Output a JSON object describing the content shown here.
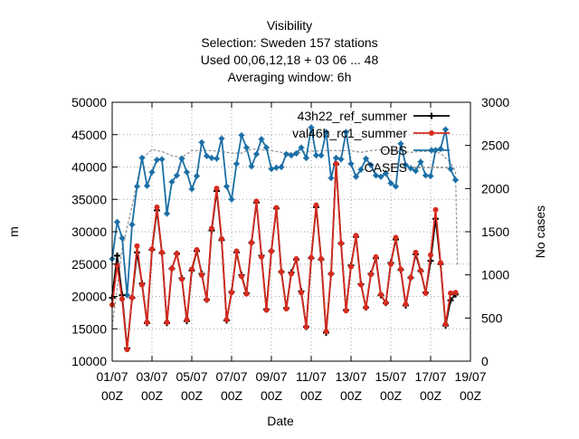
{
  "chart_data": {
    "type": "line",
    "title_lines": [
      "Visibility",
      "Selection: Sweden     157 stations",
      "Used  00,06,12,18  + 03 06 ... 48",
      "Averaging window:  6h"
    ],
    "xlabel": "Date",
    "ylabel": "m",
    "y2label": "No cases",
    "x_ticks": [
      {
        "day": 1,
        "label1": "01/07",
        "label2": "00Z"
      },
      {
        "day": 3,
        "label1": "03/07",
        "label2": "00Z"
      },
      {
        "day": 5,
        "label1": "05/07",
        "label2": "00Z"
      },
      {
        "day": 7,
        "label1": "07/07",
        "label2": "00Z"
      },
      {
        "day": 9,
        "label1": "09/07",
        "label2": "00Z"
      },
      {
        "day": 11,
        "label1": "11/07",
        "label2": "00Z"
      },
      {
        "day": 13,
        "label1": "13/07",
        "label2": "00Z"
      },
      {
        "day": 15,
        "label1": "15/07",
        "label2": "00Z"
      },
      {
        "day": 17,
        "label1": "17/07",
        "label2": "00Z"
      },
      {
        "day": 19,
        "label1": "19/07",
        "label2": "00Z"
      }
    ],
    "xlim": [
      1,
      19
    ],
    "ylim": [
      10000,
      50000
    ],
    "y_ticks": [
      10000,
      15000,
      20000,
      25000,
      30000,
      35000,
      40000,
      45000,
      50000
    ],
    "y2lim": [
      0,
      3000
    ],
    "y2_ticks": [
      0,
      500,
      1000,
      1500,
      2000,
      2500,
      3000
    ],
    "grid": true,
    "legend_position": "top-right",
    "series": [
      {
        "name": "43h22_ref_summer",
        "legend_label": "43h22_ref_summer",
        "color": "#000000",
        "marker": "plus",
        "axis": "y",
        "x": [
          1.0,
          1.25,
          1.5,
          1.75,
          2.0,
          2.25,
          2.5,
          2.75,
          3.0,
          3.25,
          3.5,
          3.75,
          4.0,
          4.25,
          4.5,
          4.75,
          5.0,
          5.25,
          5.5,
          5.75,
          6.0,
          6.25,
          6.5,
          6.75,
          7.0,
          7.25,
          7.5,
          7.75,
          8.0,
          8.25,
          8.5,
          8.75,
          9.0,
          9.25,
          9.5,
          9.75,
          10.0,
          10.25,
          10.5,
          10.75,
          11.0,
          11.25,
          11.5,
          11.75,
          12.0,
          12.25,
          12.5,
          12.75,
          13.0,
          13.25,
          13.5,
          13.75,
          14.0,
          14.25,
          14.5,
          14.75,
          15.0,
          15.25,
          15.5,
          15.75,
          16.0,
          16.25,
          16.5,
          16.75,
          17.0,
          17.25,
          17.5,
          17.75,
          18.0,
          18.25
        ],
        "values": [
          19800,
          26300,
          20200,
          12000,
          19800,
          26800,
          22000,
          15900,
          27200,
          33300,
          26700,
          15900,
          24300,
          26600,
          22800,
          16200,
          24000,
          27000,
          23500,
          19500,
          30200,
          36300,
          28700,
          16300,
          20700,
          26800,
          23300,
          20500,
          28300,
          34500,
          26300,
          18000,
          27000,
          33600,
          23800,
          18200,
          23700,
          25700,
          20800,
          15300,
          25900,
          33800,
          25700,
          14400,
          23500,
          40400,
          28200,
          17900,
          24800,
          29200,
          21900,
          18300,
          23500,
          25900,
          20200,
          19000,
          25200,
          28800,
          24100,
          18600,
          22900,
          26500,
          23900,
          20600,
          25500,
          32000,
          25000,
          15500,
          19400,
          20300
        ]
      },
      {
        "name": "val46h_rc1_summer",
        "legend_label": "val46h_rc1_summer",
        "color": "#d62b1f",
        "marker": "circle",
        "axis": "y",
        "x": [
          1.0,
          1.25,
          1.5,
          1.75,
          2.0,
          2.25,
          2.5,
          2.75,
          3.0,
          3.25,
          3.5,
          3.75,
          4.0,
          4.25,
          4.5,
          4.75,
          5.0,
          5.25,
          5.5,
          5.75,
          6.0,
          6.25,
          6.5,
          6.75,
          7.0,
          7.25,
          7.5,
          7.75,
          8.0,
          8.25,
          8.5,
          8.75,
          9.0,
          9.25,
          9.5,
          9.75,
          10.0,
          10.25,
          10.5,
          10.75,
          11.0,
          11.25,
          11.5,
          11.75,
          12.0,
          12.25,
          12.5,
          12.75,
          13.0,
          13.25,
          13.5,
          13.75,
          14.0,
          14.25,
          14.5,
          14.75,
          15.0,
          15.25,
          15.5,
          15.75,
          16.0,
          16.25,
          16.5,
          16.75,
          17.0,
          17.25,
          17.5,
          17.75,
          18.0,
          18.25
        ],
        "values": [
          18700,
          24800,
          19600,
          11800,
          19800,
          27800,
          21800,
          16000,
          27300,
          33800,
          26800,
          16000,
          24300,
          26600,
          22700,
          16400,
          24200,
          27200,
          23300,
          19500,
          30500,
          36700,
          28900,
          16400,
          20600,
          27000,
          23100,
          20400,
          28300,
          34700,
          26100,
          17900,
          27000,
          33700,
          23800,
          18100,
          23500,
          25800,
          20600,
          15300,
          26000,
          34100,
          25800,
          14600,
          23500,
          40500,
          28200,
          17800,
          24600,
          29400,
          21800,
          18300,
          23400,
          26100,
          20300,
          19000,
          25000,
          29100,
          24200,
          18800,
          22900,
          26800,
          24000,
          20500,
          26400,
          33400,
          25200,
          15700,
          20500,
          20600
        ]
      },
      {
        "name": "OBS",
        "legend_label": "OBS",
        "color": "#1c6fa6",
        "marker": "star",
        "axis": "y",
        "x": [
          1.0,
          1.25,
          1.5,
          1.75,
          2.0,
          2.25,
          2.5,
          2.75,
          3.0,
          3.25,
          3.5,
          3.75,
          4.0,
          4.25,
          4.5,
          4.75,
          5.0,
          5.25,
          5.5,
          5.75,
          6.0,
          6.25,
          6.5,
          6.75,
          7.0,
          7.25,
          7.5,
          7.75,
          8.0,
          8.25,
          8.5,
          8.75,
          9.0,
          9.25,
          9.5,
          9.75,
          10.0,
          10.25,
          10.5,
          10.75,
          11.0,
          11.25,
          11.5,
          11.75,
          12.0,
          12.25,
          12.5,
          12.75,
          13.0,
          13.25,
          13.5,
          13.75,
          14.0,
          14.25,
          14.5,
          14.75,
          15.0,
          15.25,
          15.5,
          15.75,
          16.0,
          16.25,
          16.5,
          16.75,
          17.0,
          17.25,
          17.5,
          17.75,
          18.0,
          18.25
        ],
        "values": [
          25800,
          31500,
          29000,
          20200,
          31100,
          37000,
          41400,
          37100,
          39200,
          41100,
          41200,
          32800,
          37700,
          38700,
          41300,
          39200,
          36600,
          38600,
          43800,
          41700,
          41400,
          41300,
          44400,
          37000,
          35000,
          40500,
          44900,
          43000,
          40100,
          42000,
          44300,
          43000,
          39700,
          39900,
          40000,
          42000,
          41800,
          42100,
          43000,
          41400,
          46100,
          41800,
          41800,
          45400,
          38300,
          41400,
          41200,
          45400,
          40500,
          38500,
          39600,
          41300,
          40300,
          38700,
          38500,
          39000,
          37500,
          37000,
          43600,
          40300,
          39800,
          39400,
          40800,
          38700,
          38600,
          42600,
          42800,
          45800,
          39700,
          38000
        ]
      },
      {
        "name": "CASES",
        "legend_label": "CASES",
        "color": "#999999",
        "marker": "none",
        "dash": "dashed",
        "axis": "y2",
        "x": [
          1.0,
          1.5,
          2.0,
          2.5,
          3.0,
          3.5,
          4.0,
          4.5,
          5.0,
          5.5,
          6.0,
          6.5,
          7.0,
          7.5,
          8.0,
          8.5,
          9.0,
          9.5,
          10.0,
          10.5,
          11.0,
          11.5,
          12.0,
          12.5,
          13.0,
          13.5,
          14.0,
          14.5,
          15.0,
          15.5,
          16.0,
          16.5,
          17.0,
          17.5,
          18.0,
          18.25,
          18.35
        ],
        "values": [
          400,
          1300,
          1800,
          2350,
          2450,
          2430,
          2380,
          2360,
          2440,
          2440,
          2440,
          2430,
          2410,
          2410,
          2460,
          2450,
          2440,
          2420,
          2410,
          2420,
          2430,
          2440,
          2440,
          2440,
          2440,
          2420,
          2440,
          2450,
          2440,
          2430,
          2420,
          2430,
          2430,
          2410,
          2300,
          2200,
          1100
        ]
      }
    ]
  }
}
